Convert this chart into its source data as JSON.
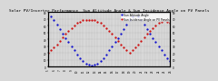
{
  "title": "Solar PV/Inverter Performance  Sun Altitude Angle & Sun Incidence Angle on PV Panels",
  "title_fontsize": 3.2,
  "series": [
    {
      "label": "Sun Altitude Angle",
      "color": "#0000cc",
      "marker": ".",
      "markersize": 1.2,
      "x": [
        5,
        5.5,
        6,
        6.5,
        7,
        7.5,
        8,
        8.5,
        9,
        9.5,
        10,
        10.5,
        11,
        11.5,
        12,
        12.5,
        13,
        13.5,
        14,
        14.5,
        15,
        15.5,
        16,
        16.5,
        17,
        17.5,
        18,
        18.5,
        19,
        19.5,
        20,
        20.5,
        21,
        21.5,
        22,
        22.5,
        23,
        23.5,
        24,
        24.5,
        25,
        25.5,
        26
      ],
      "y": [
        80,
        74,
        68,
        62,
        55,
        49,
        42,
        36,
        30,
        24,
        18,
        13,
        9,
        5,
        3,
        2,
        3,
        5,
        9,
        13,
        18,
        24,
        30,
        36,
        42,
        49,
        55,
        62,
        68,
        74,
        80,
        74,
        68,
        62,
        55,
        49,
        42,
        36,
        30,
        24,
        18,
        13,
        9
      ]
    },
    {
      "label": "Sun Incidence Angle on PV Panels",
      "color": "#cc0000",
      "marker": ".",
      "markersize": 1.2,
      "x": [
        5,
        5.5,
        6,
        6.5,
        7,
        7.5,
        8,
        8.5,
        9,
        9.5,
        10,
        10.5,
        11,
        11.5,
        12,
        12.5,
        13,
        13.5,
        14,
        14.5,
        15,
        15.5,
        16,
        16.5,
        17,
        17.5,
        18,
        18.5,
        19,
        19.5,
        20,
        20.5,
        21,
        21.5,
        22,
        22.5,
        23,
        23.5,
        24,
        24.5,
        25,
        25.5,
        26
      ],
      "y": [
        20,
        24,
        28,
        33,
        38,
        43,
        48,
        53,
        57,
        61,
        64,
        66,
        68,
        68,
        68,
        68,
        68,
        66,
        64,
        61,
        57,
        53,
        48,
        43,
        38,
        33,
        28,
        24,
        20,
        24,
        28,
        33,
        38,
        43,
        48,
        53,
        57,
        61,
        64,
        66,
        68,
        66,
        64
      ]
    }
  ],
  "xlim": [
    5,
    26
  ],
  "ylim": [
    0,
    80
  ],
  "yticks_left": [
    0,
    10,
    20,
    30,
    40,
    50,
    60,
    70,
    80
  ],
  "yticks_right": [
    0,
    10,
    20,
    30,
    40,
    50,
    60,
    70,
    80
  ],
  "xticks": [
    5,
    5.5,
    6,
    6.5,
    7,
    7.5,
    8,
    8.5,
    9,
    9.5,
    10,
    10.5,
    11,
    11.5,
    12,
    12.5,
    13,
    13.5,
    14,
    14.5,
    15,
    15.5,
    16,
    16.5,
    17,
    17.5,
    18,
    18.5,
    19,
    19.5,
    20,
    20.5,
    21,
    21.5,
    22,
    22.5,
    23,
    23.5,
    24,
    24.5,
    25,
    25.5,
    26
  ],
  "xtick_labels": [
    "5",
    "",
    "6",
    "",
    "7",
    "",
    "8",
    "",
    "9",
    "",
    "10",
    "",
    "11",
    "",
    "12",
    "",
    "13",
    "",
    "14",
    "",
    "15",
    "",
    "16",
    "",
    "17",
    "",
    "18",
    "",
    "19",
    "",
    "20",
    "",
    "21",
    "",
    "22",
    "",
    "23",
    "",
    "24",
    "",
    "25",
    "",
    "26"
  ],
  "grid_color": "#999999",
  "grid_linestyle": ":",
  "grid_linewidth": 0.3,
  "bg_color": "#d8d8d8",
  "plot_bg_color": "#d8d8d8",
  "legend_loc": "upper right",
  "legend_fontsize": 2.2,
  "tick_labelsize": 2.0
}
